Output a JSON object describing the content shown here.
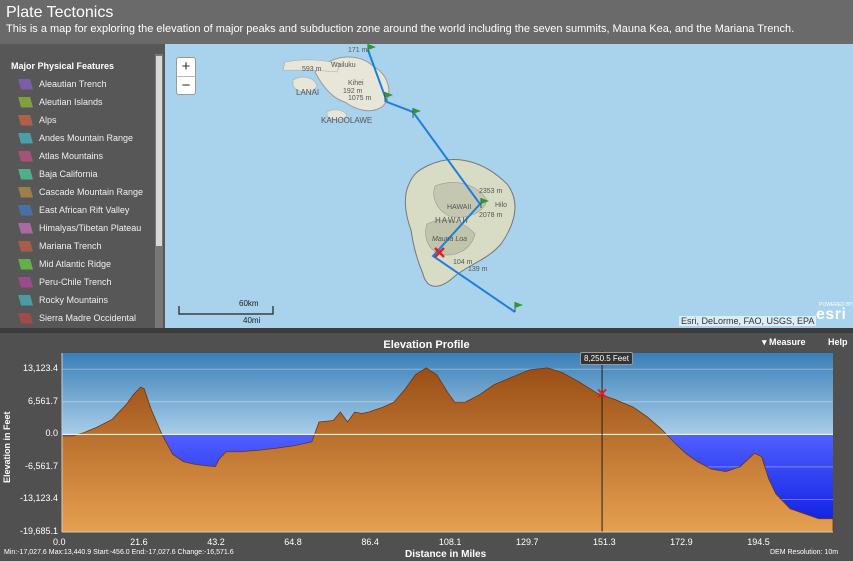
{
  "header": {
    "title": "Plate Tectonics",
    "subtitle": "This is a map for exploring the elevation of major peaks and subduction zone around the world including the seven summits, Mauna Kea, and the Mariana Trench."
  },
  "sidebar": {
    "heading": "Major Physical Features",
    "items": [
      {
        "label": "Aleautian Trench",
        "color": "#7a5ea8"
      },
      {
        "label": "Aleutian Islands",
        "color": "#7fa23c"
      },
      {
        "label": "Alps",
        "color": "#b0604a"
      },
      {
        "label": "Andes Mountain Range",
        "color": "#4aa0a8"
      },
      {
        "label": "Atlas Mountains",
        "color": "#a8527a"
      },
      {
        "label": "Baja California",
        "color": "#4eb08a"
      },
      {
        "label": "Cascade Mountain Range",
        "color": "#9c8048"
      },
      {
        "label": "East African Rift Valley",
        "color": "#4870a8"
      },
      {
        "label": "Himalyas/Tibetan Plateau",
        "color": "#a86aa0"
      },
      {
        "label": "Mariana Trench",
        "color": "#a85c4a"
      },
      {
        "label": "Mid Atlantic Ridge",
        "color": "#64b048"
      },
      {
        "label": "Peru-Chile Trench",
        "color": "#9c4a8c"
      },
      {
        "label": "Rocky Mountains",
        "color": "#4a9ca0"
      },
      {
        "label": "Sierra Madre Occidental",
        "color": "#a04a4a"
      }
    ]
  },
  "map": {
    "zoom_in": "+",
    "zoom_out": "−",
    "scale_km": "60km",
    "scale_mi": "40mi",
    "attribution": "Esri, DeLorme, FAO, USGS, EPA",
    "esri_powered": "POWERED BY",
    "esri_logo": "esri",
    "labels": {
      "lanai": "LANAI",
      "kahoolawe": "KAHOOLAWE",
      "hawaii": "HAWAII",
      "hawaii_caps": "HAWAII",
      "hilo": "Hilo",
      "mauna_loa": "Mauna Loa",
      "wailuku": "Wailuku",
      "kihei": "Kihei",
      "e171": "171 m",
      "e593": "593 m",
      "e192": "192 m",
      "e1075": "1075 m",
      "e2353": "2353 m",
      "e2078": "2078 m",
      "e104": "104 m",
      "e139": "139 m"
    }
  },
  "profile": {
    "title": "Elevation Profile",
    "measure_label": "▾ Measure",
    "help_label": "Help",
    "tooltip": "8,250.5 Feet",
    "stats": "Min:-17,027.6 Max:13,440.9 Start:-456.0 End:-17,027.6 Change:-16,571.6",
    "dem": "DEM Resolution: 10m"
  },
  "chart_data": {
    "type": "area",
    "xlabel": "Distance in Miles",
    "ylabel": "Elevation in Feet",
    "xlim": [
      0,
      216
    ],
    "ylim": [
      -19685.1,
      16400
    ],
    "x_ticks": [
      "0.0",
      "21.6",
      "43.2",
      "64.8",
      "86.4",
      "108.1",
      "129.7",
      "151.3",
      "172.9",
      "194.5"
    ],
    "y_ticks": [
      "13,123.4",
      "6,561.7",
      "0.0",
      "-6,561.7",
      "-13,123.4",
      "-19,685.1"
    ],
    "x": [
      0,
      3,
      6,
      10,
      14,
      18,
      20,
      22,
      23,
      25,
      28,
      31,
      34,
      37,
      40,
      43,
      44,
      46,
      50,
      55,
      60,
      65,
      70,
      72,
      76,
      78,
      80,
      82,
      84,
      86,
      88,
      90,
      93,
      96,
      99,
      102,
      105,
      108,
      110,
      113,
      117,
      121,
      126,
      131,
      136,
      140,
      145,
      150,
      155,
      160,
      164,
      168,
      172,
      175,
      178,
      182,
      186,
      190,
      194,
      196,
      198,
      200,
      204,
      208,
      212,
      216
    ],
    "y": [
      -300,
      -300,
      300,
      1500,
      3000,
      6000,
      8000,
      9500,
      9200,
      5000,
      0,
      -4000,
      -5500,
      -6000,
      -6300,
      -6500,
      -5000,
      -3500,
      -3500,
      -3200,
      -2800,
      -2300,
      -1500,
      2500,
      2800,
      4500,
      2500,
      4500,
      4200,
      4500,
      5000,
      5500,
      6500,
      9000,
      12000,
      13400,
      12000,
      8500,
      6500,
      6500,
      8000,
      10000,
      11500,
      13000,
      13400,
      12500,
      10500,
      8250,
      7000,
      5500,
      3500,
      1000,
      -2000,
      -4000,
      -5500,
      -7000,
      -7500,
      -6500,
      -3800,
      -4500,
      -9000,
      -12000,
      -15000,
      -16000,
      -17000,
      -17000
    ],
    "marker": {
      "x": 151.3,
      "y": 8250.5
    }
  }
}
